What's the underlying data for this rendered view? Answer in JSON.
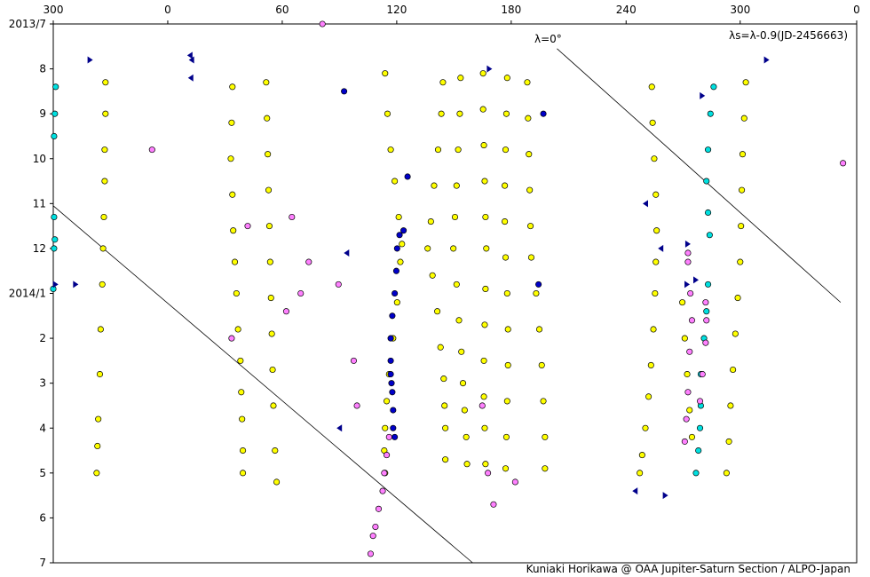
{
  "chart_data": {
    "type": "scatter",
    "title": "",
    "annotation_right": "λs=λ-0.9(JD-2456663)",
    "annotation_line": "λ=0°",
    "credit": "Kuniaki Horikawa @ OAA Jupiter-Saturn Section / ALPO-Japan",
    "x_axis": {
      "label": "",
      "position": "top",
      "tick_labels": [
        "300",
        "0",
        "60",
        "120",
        "180",
        "240",
        "300",
        "0"
      ],
      "note": "longitude (λs), decreasing to the right, wraps 300→0"
    },
    "y_axis": {
      "label": "",
      "tick_labels": [
        "2013/7",
        "8",
        "9",
        "10",
        "11",
        "12",
        "2014/1",
        "2",
        "3",
        "4",
        "5",
        "6",
        "7"
      ],
      "range": [
        "2013/7",
        "2014/7"
      ]
    },
    "grid": false,
    "series": [
      {
        "color": "#ffff00",
        "marker": "circle",
        "points": [
          [
            0.065,
            8.3
          ],
          [
            0.065,
            9.0
          ],
          [
            0.064,
            9.8
          ],
          [
            0.064,
            10.5
          ],
          [
            0.063,
            11.3
          ],
          [
            0.062,
            12.0
          ],
          [
            0.061,
            12.8
          ],
          [
            0.059,
            13.8
          ],
          [
            0.058,
            14.8
          ],
          [
            0.056,
            15.8
          ],
          [
            0.055,
            16.4
          ],
          [
            0.054,
            17.0
          ],
          [
            0.223,
            8.4
          ],
          [
            0.222,
            9.2
          ],
          [
            0.221,
            10.0
          ],
          [
            0.223,
            10.8
          ],
          [
            0.224,
            11.6
          ],
          [
            0.226,
            12.3
          ],
          [
            0.228,
            13.0
          ],
          [
            0.23,
            13.8
          ],
          [
            0.233,
            14.5
          ],
          [
            0.234,
            15.2
          ],
          [
            0.235,
            15.8
          ],
          [
            0.236,
            16.5
          ],
          [
            0.236,
            17.0
          ],
          [
            0.265,
            8.3
          ],
          [
            0.266,
            9.1
          ],
          [
            0.267,
            9.9
          ],
          [
            0.268,
            10.7
          ],
          [
            0.269,
            11.5
          ],
          [
            0.27,
            12.3
          ],
          [
            0.271,
            13.1
          ],
          [
            0.272,
            13.9
          ],
          [
            0.273,
            14.7
          ],
          [
            0.274,
            15.5
          ],
          [
            0.276,
            16.5
          ],
          [
            0.278,
            17.2
          ],
          [
            0.413,
            8.1
          ],
          [
            0.416,
            9.0
          ],
          [
            0.42,
            9.8
          ],
          [
            0.425,
            10.5
          ],
          [
            0.43,
            11.3
          ],
          [
            0.434,
            11.9
          ],
          [
            0.432,
            12.3
          ],
          [
            0.428,
            13.2
          ],
          [
            0.423,
            14.0
          ],
          [
            0.418,
            14.8
          ],
          [
            0.415,
            15.4
          ],
          [
            0.413,
            16.0
          ],
          [
            0.412,
            16.5
          ],
          [
            0.413,
            17.0
          ],
          [
            0.485,
            8.3
          ],
          [
            0.483,
            9.0
          ],
          [
            0.479,
            9.8
          ],
          [
            0.474,
            10.6
          ],
          [
            0.47,
            11.4
          ],
          [
            0.466,
            12.0
          ],
          [
            0.472,
            12.6
          ],
          [
            0.478,
            13.4
          ],
          [
            0.482,
            14.2
          ],
          [
            0.486,
            14.9
          ],
          [
            0.487,
            15.5
          ],
          [
            0.488,
            16.0
          ],
          [
            0.488,
            16.7
          ],
          [
            0.507,
            8.2
          ],
          [
            0.506,
            9.0
          ],
          [
            0.504,
            9.8
          ],
          [
            0.502,
            10.6
          ],
          [
            0.5,
            11.3
          ],
          [
            0.498,
            12.0
          ],
          [
            0.502,
            12.8
          ],
          [
            0.505,
            13.6
          ],
          [
            0.508,
            14.3
          ],
          [
            0.51,
            15.0
          ],
          [
            0.512,
            15.6
          ],
          [
            0.514,
            16.2
          ],
          [
            0.515,
            16.8
          ],
          [
            0.535,
            8.1
          ],
          [
            0.535,
            8.9
          ],
          [
            0.536,
            9.7
          ],
          [
            0.537,
            10.5
          ],
          [
            0.538,
            11.3
          ],
          [
            0.539,
            12.0
          ],
          [
            0.538,
            12.9
          ],
          [
            0.537,
            13.7
          ],
          [
            0.536,
            14.5
          ],
          [
            0.536,
            15.3
          ],
          [
            0.537,
            16.0
          ],
          [
            0.538,
            16.8
          ],
          [
            0.565,
            8.2
          ],
          [
            0.564,
            9.0
          ],
          [
            0.563,
            9.8
          ],
          [
            0.562,
            10.6
          ],
          [
            0.562,
            11.4
          ],
          [
            0.563,
            12.2
          ],
          [
            0.565,
            13.0
          ],
          [
            0.566,
            13.8
          ],
          [
            0.566,
            14.6
          ],
          [
            0.565,
            15.4
          ],
          [
            0.564,
            16.2
          ],
          [
            0.563,
            16.9
          ],
          [
            0.59,
            8.3
          ],
          [
            0.591,
            9.1
          ],
          [
            0.592,
            9.9
          ],
          [
            0.593,
            10.7
          ],
          [
            0.594,
            11.5
          ],
          [
            0.595,
            12.2
          ],
          [
            0.601,
            13.0
          ],
          [
            0.605,
            13.8
          ],
          [
            0.608,
            14.6
          ],
          [
            0.61,
            15.4
          ],
          [
            0.612,
            16.2
          ],
          [
            0.612,
            16.9
          ],
          [
            0.745,
            8.4
          ],
          [
            0.746,
            9.2
          ],
          [
            0.748,
            10.0
          ],
          [
            0.75,
            10.8
          ],
          [
            0.751,
            11.6
          ],
          [
            0.75,
            12.3
          ],
          [
            0.749,
            13.0
          ],
          [
            0.747,
            13.8
          ],
          [
            0.744,
            14.6
          ],
          [
            0.741,
            15.3
          ],
          [
            0.737,
            16.0
          ],
          [
            0.733,
            16.6
          ],
          [
            0.73,
            17.0
          ],
          [
            0.862,
            8.3
          ],
          [
            0.86,
            9.1
          ],
          [
            0.858,
            9.9
          ],
          [
            0.857,
            10.7
          ],
          [
            0.856,
            11.5
          ],
          [
            0.855,
            12.3
          ],
          [
            0.852,
            13.1
          ],
          [
            0.849,
            13.9
          ],
          [
            0.846,
            14.7
          ],
          [
            0.843,
            15.5
          ],
          [
            0.841,
            16.3
          ],
          [
            0.838,
            17.0
          ],
          [
            0.783,
            13.2
          ],
          [
            0.786,
            14.0
          ],
          [
            0.789,
            14.8
          ],
          [
            0.792,
            15.6
          ],
          [
            0.795,
            16.2
          ]
        ]
      },
      {
        "color": "#00e0e0",
        "marker": "circle",
        "points": [
          [
            0.003,
            8.4
          ],
          [
            0.002,
            9.0
          ],
          [
            0.001,
            9.5
          ],
          [
            0.001,
            11.3
          ],
          [
            0.002,
            11.8
          ],
          [
            0.001,
            12.0
          ],
          [
            0.0,
            12.9
          ],
          [
            0.822,
            8.4
          ],
          [
            0.818,
            9.0
          ],
          [
            0.815,
            9.8
          ],
          [
            0.813,
            10.5
          ],
          [
            0.815,
            11.2
          ],
          [
            0.817,
            11.7
          ],
          [
            0.815,
            12.8
          ],
          [
            0.813,
            13.4
          ],
          [
            0.81,
            14.0
          ],
          [
            0.806,
            14.8
          ],
          [
            0.806,
            15.5
          ],
          [
            0.805,
            16.0
          ],
          [
            0.803,
            16.5
          ],
          [
            0.8,
            17.0
          ]
        ]
      },
      {
        "color": "#ff80ff",
        "marker": "circle",
        "points": [
          [
            0.79,
            12.1
          ],
          [
            0.79,
            12.3
          ],
          [
            0.793,
            13.0
          ],
          [
            0.795,
            13.6
          ],
          [
            0.792,
            14.3
          ],
          [
            0.79,
            15.2
          ],
          [
            0.788,
            15.8
          ],
          [
            0.786,
            16.3
          ],
          [
            0.812,
            13.2
          ],
          [
            0.813,
            13.6
          ],
          [
            0.812,
            14.1
          ],
          [
            0.808,
            14.8
          ],
          [
            0.805,
            15.4
          ],
          [
            0.418,
            16.2
          ],
          [
            0.415,
            16.6
          ],
          [
            0.412,
            17.0
          ],
          [
            0.41,
            17.4
          ],
          [
            0.405,
            17.8
          ],
          [
            0.401,
            18.2
          ],
          [
            0.398,
            18.4
          ],
          [
            0.395,
            18.8
          ],
          [
            0.335,
            7.0
          ],
          [
            0.123,
            9.8
          ],
          [
            0.297,
            11.3
          ],
          [
            0.242,
            11.5
          ],
          [
            0.318,
            12.3
          ],
          [
            0.355,
            12.8
          ],
          [
            0.222,
            14.0
          ],
          [
            0.29,
            13.4
          ],
          [
            0.308,
            13.0
          ],
          [
            0.374,
            14.5
          ],
          [
            0.378,
            15.5
          ],
          [
            0.534,
            15.5
          ],
          [
            0.541,
            17.0
          ],
          [
            0.575,
            17.2
          ],
          [
            0.548,
            17.7
          ],
          [
            0.983,
            10.1
          ]
        ]
      },
      {
        "color": "#0000c8",
        "marker": "circle",
        "points": [
          [
            0.441,
            10.4
          ],
          [
            0.436,
            11.6
          ],
          [
            0.431,
            11.7
          ],
          [
            0.428,
            12.0
          ],
          [
            0.427,
            12.5
          ],
          [
            0.425,
            13.0
          ],
          [
            0.422,
            13.5
          ],
          [
            0.42,
            14.0
          ],
          [
            0.42,
            14.5
          ],
          [
            0.42,
            14.8
          ],
          [
            0.421,
            15.0
          ],
          [
            0.422,
            15.2
          ],
          [
            0.423,
            15.6
          ],
          [
            0.423,
            16.0
          ],
          [
            0.425,
            16.2
          ],
          [
            0.362,
            8.5
          ],
          [
            0.61,
            9.0
          ],
          [
            0.604,
            12.8
          ]
        ]
      },
      {
        "color": "#00008b",
        "marker": "triangle-right",
        "points": [
          [
            0.046,
            7.8
          ],
          [
            0.003,
            12.8
          ],
          [
            0.028,
            12.8
          ],
          [
            0.543,
            8.0
          ],
          [
            0.808,
            8.6
          ],
          [
            0.79,
            11.9
          ],
          [
            0.789,
            12.8
          ],
          [
            0.762,
            17.5
          ],
          [
            0.888,
            7.8
          ],
          [
            0.8,
            12.7
          ]
        ]
      },
      {
        "color": "#00008b",
        "marker": "triangle-left",
        "points": [
          [
            0.17,
            7.7
          ],
          [
            0.172,
            7.8
          ],
          [
            0.171,
            8.2
          ],
          [
            0.365,
            12.1
          ],
          [
            0.356,
            16.0
          ],
          [
            0.737,
            11.0
          ],
          [
            0.756,
            12.0
          ],
          [
            0.724,
            17.4
          ]
        ]
      }
    ],
    "lines": [
      {
        "label": "λ=0°",
        "from": [
          0.627,
          7.55
        ],
        "to": [
          0.98,
          13.2
        ]
      },
      {
        "from": [
          0.0,
          11.05
        ],
        "to": [
          0.522,
          19.0
        ]
      }
    ]
  }
}
